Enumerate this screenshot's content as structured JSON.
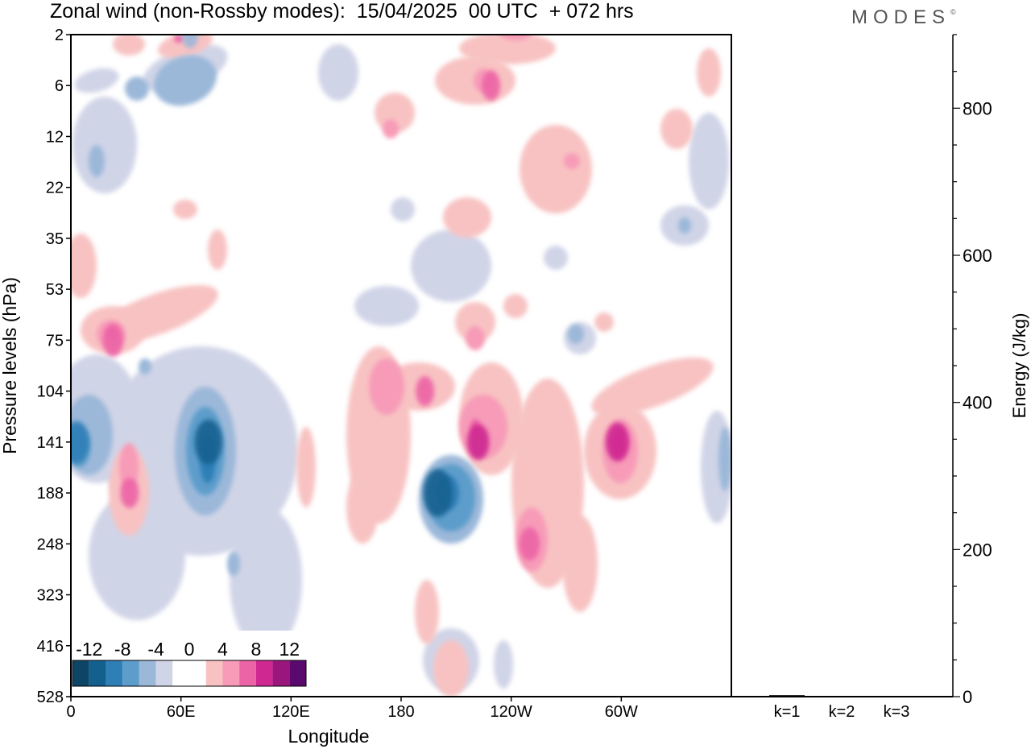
{
  "title": "Zonal wind (non-Rossby modes):  15/04/2025  00 UTC  + 072 hrs",
  "logo_text": "MODES",
  "logo_mark": "©",
  "chart_data": [
    {
      "type": "heatmap",
      "title": "Zonal wind (non-Rossby modes):  15/04/2025  00 UTC  + 072 hrs",
      "xlabel": "Longitude",
      "ylabel": "Pressure levels (hPa)",
      "x_ticks": [
        "0",
        "60E",
        "120E",
        "180",
        "120W",
        "60W"
      ],
      "x_tick_positions_deg": [
        0,
        60,
        120,
        180,
        240,
        300
      ],
      "xlim_deg": [
        0,
        360
      ],
      "y_ticks": [
        "2",
        "6",
        "12",
        "22",
        "35",
        "53",
        "75",
        "104",
        "141",
        "188",
        "248",
        "323",
        "416",
        "528"
      ],
      "colorbar": {
        "tick_labels": [
          "-12",
          "-8",
          "-4",
          "0",
          "4",
          "8",
          "12"
        ],
        "colors": [
          "#0c4566",
          "#13608f",
          "#2f7fb7",
          "#5d9dcb",
          "#9bb8d9",
          "#d0d4e7",
          "#ffffff",
          "#ffffff",
          "#f8c2c2",
          "#f79bb8",
          "#ec64a6",
          "#cf2891",
          "#9a167d",
          "#5a0a6e"
        ]
      },
      "features": [
        {
          "sign": "positive",
          "lon_center": 193,
          "level": "104",
          "intensity": 6
        },
        {
          "sign": "negative",
          "lon_center": 200,
          "level": "188",
          "intensity": -12
        },
        {
          "sign": "negative",
          "lon_center": 75,
          "level": "141",
          "intensity": -11
        },
        {
          "sign": "negative",
          "lon_center": 3,
          "level": "141",
          "intensity": -10
        },
        {
          "sign": "positive",
          "lon_center": 298,
          "level": "141",
          "intensity": 9
        },
        {
          "sign": "positive",
          "lon_center": 222,
          "level": "141",
          "intensity": 8
        },
        {
          "sign": "positive",
          "lon_center": 250,
          "level": "248",
          "intensity": 7
        },
        {
          "sign": "positive",
          "lon_center": 23,
          "level": "75",
          "intensity": 7
        },
        {
          "sign": "positive",
          "lon_center": 32,
          "level": "188",
          "intensity": 6
        },
        {
          "sign": "positive",
          "lon_center": 229,
          "level": "6",
          "intensity": 6
        },
        {
          "sign": "negative",
          "lon_center": 65,
          "level": "2",
          "intensity": -5
        }
      ]
    },
    {
      "type": "bar",
      "title": "",
      "xlabel": "",
      "ylabel": "Energy (J/kg)",
      "categories": [
        "k=1",
        "k=2",
        "k=3"
      ],
      "values": [
        2,
        1,
        1
      ],
      "ylim": [
        0,
        900
      ],
      "y_ticks": [
        0,
        200,
        400,
        600,
        800
      ]
    }
  ]
}
